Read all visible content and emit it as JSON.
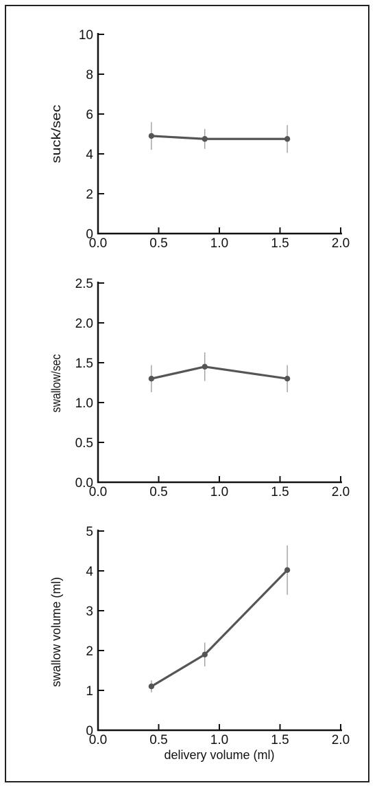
{
  "chart_data": [
    {
      "type": "line",
      "ylabel": "suck/sec",
      "xlabel": "",
      "xlim": [
        0,
        2
      ],
      "ylim": [
        0,
        10
      ],
      "xticks": [
        "0.0",
        "0.5",
        "1.0",
        "1.5",
        "2.0"
      ],
      "yticks": [
        "0",
        "2",
        "4",
        "6",
        "8",
        "10"
      ],
      "series": [
        {
          "x": [
            0.44,
            0.88,
            1.56
          ],
          "y": [
            4.9,
            4.75,
            4.75
          ],
          "err": [
            0.7,
            0.5,
            0.7
          ]
        }
      ]
    },
    {
      "type": "line",
      "ylabel": "swallow/sec",
      "xlabel": "",
      "xlim": [
        0,
        2
      ],
      "ylim": [
        0,
        2.5
      ],
      "xticks": [
        "0.0",
        "0.5",
        "1.0",
        "1.5",
        "2.0"
      ],
      "yticks": [
        "0.0",
        "0.5",
        "1.0",
        "1.5",
        "2.0",
        "2.5"
      ],
      "series": [
        {
          "x": [
            0.44,
            0.88,
            1.56
          ],
          "y": [
            1.3,
            1.45,
            1.3
          ],
          "err": [
            0.17,
            0.18,
            0.17
          ]
        }
      ]
    },
    {
      "type": "line",
      "ylabel": "swallow volume (ml)",
      "xlabel": "delivery volume (ml)",
      "xlim": [
        0,
        2
      ],
      "ylim": [
        0,
        5
      ],
      "xticks": [
        "0.0",
        "0.5",
        "1.0",
        "1.5",
        "2.0"
      ],
      "yticks": [
        "0",
        "1",
        "2",
        "3",
        "4",
        "5"
      ],
      "series": [
        {
          "x": [
            0.44,
            0.88,
            1.56
          ],
          "y": [
            1.1,
            1.9,
            4.02
          ],
          "err": [
            0.15,
            0.3,
            0.62
          ]
        }
      ]
    }
  ],
  "colors": {
    "line": "#555555",
    "axis": "#111111",
    "errorbar": "#999999"
  }
}
